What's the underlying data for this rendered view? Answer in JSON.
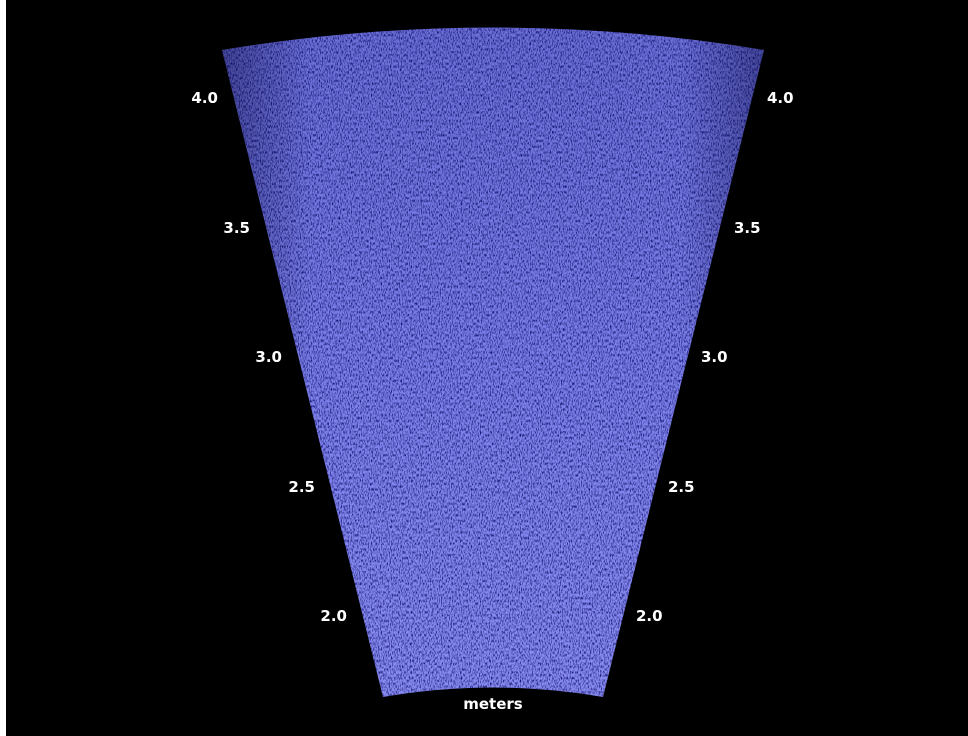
{
  "sonar": {
    "beam_color": "#7a7fe6",
    "background_color": "#000000",
    "label_color": "#ffffff",
    "unit_label": "meters",
    "range_ticks_left": [
      "4.0",
      "3.5",
      "3.0",
      "2.5",
      "2.0"
    ],
    "range_ticks_right": [
      "4.0",
      "3.5",
      "3.0",
      "2.5",
      "2.0"
    ]
  }
}
